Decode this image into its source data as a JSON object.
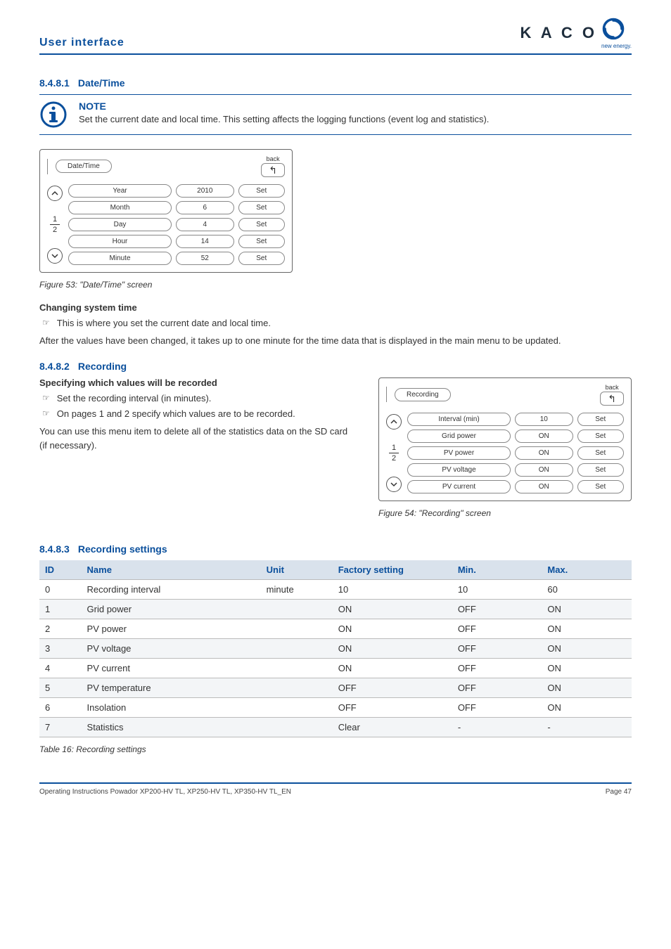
{
  "header": {
    "section": "User interface",
    "logo_text": "K A C O",
    "logo_sub": "new energy."
  },
  "sec1": {
    "num": "8.4.8.1",
    "title": "Date/Time",
    "note_title": "NOTE",
    "note_text": "Set the current date and local time. This setting affects the logging functions (event log and statistics).",
    "screen": {
      "title": "Date/Time",
      "back_label": "back",
      "back_glyph": "↰",
      "page_top": "1",
      "page_bot": "2",
      "rows": [
        {
          "label": "Year",
          "val": "2010",
          "set": "Set"
        },
        {
          "label": "Month",
          "val": "6",
          "set": "Set"
        },
        {
          "label": "Day",
          "val": "4",
          "set": "Set"
        },
        {
          "label": "Hour",
          "val": "14",
          "set": "Set"
        },
        {
          "label": "Minute",
          "val": "52",
          "set": "Set"
        }
      ]
    },
    "caption": "Figure 53:  \"Date/Time\" screen",
    "change_head": "Changing system time",
    "bullet1": "This is where you set the current date and local time.",
    "after_text": "After the values have been changed, it takes up to one minute for the time data that is displayed in the main menu to be updated."
  },
  "sec2": {
    "num": "8.4.8.2",
    "title": "Recording",
    "spec_head": "Specifying which values will be recorded",
    "b1": "Set the recording interval (in minutes).",
    "b2": "On pages 1 and 2 specify which values are to be recorded.",
    "para": "You can use this menu item to delete all of the statistics data on the SD card (if necessary).",
    "screen": {
      "title": "Recording",
      "back_label": "back",
      "back_glyph": "↰",
      "page_top": "1",
      "page_bot": "2",
      "rows": [
        {
          "label": "Interval (min)",
          "val": "10",
          "set": "Set"
        },
        {
          "label": "Grid power",
          "val": "ON",
          "set": "Set"
        },
        {
          "label": "PV power",
          "val": "ON",
          "set": "Set"
        },
        {
          "label": "PV voltage",
          "val": "ON",
          "set": "Set"
        },
        {
          "label": "PV current",
          "val": "ON",
          "set": "Set"
        }
      ]
    },
    "caption": "Figure 54: \"Recording\" screen"
  },
  "sec3": {
    "num": "8.4.8.3",
    "title": "Recording settings",
    "cols": {
      "c1": "ID",
      "c2": "Name",
      "c3": "Unit",
      "c4": "Factory setting",
      "c5": "Min.",
      "c6": "Max."
    },
    "rows": [
      {
        "id": "0",
        "name": "Recording interval",
        "unit": "minute",
        "fs": "10",
        "min": "10",
        "max": "60"
      },
      {
        "id": "1",
        "name": "Grid power",
        "unit": "",
        "fs": "ON",
        "min": "OFF",
        "max": "ON"
      },
      {
        "id": "2",
        "name": "PV power",
        "unit": "",
        "fs": "ON",
        "min": "OFF",
        "max": "ON"
      },
      {
        "id": "3",
        "name": "PV voltage",
        "unit": "",
        "fs": "ON",
        "min": "OFF",
        "max": "ON"
      },
      {
        "id": "4",
        "name": "PV current",
        "unit": "",
        "fs": "ON",
        "min": "OFF",
        "max": "ON"
      },
      {
        "id": "5",
        "name": "PV temperature",
        "unit": "",
        "fs": "OFF",
        "min": "OFF",
        "max": "ON"
      },
      {
        "id": "6",
        "name": "Insolation",
        "unit": "",
        "fs": "OFF",
        "min": "OFF",
        "max": "ON"
      },
      {
        "id": "7",
        "name": "Statistics",
        "unit": "",
        "fs": "Clear",
        "min": "-",
        "max": "-"
      }
    ],
    "caption": "Table 16:    Recording settings"
  },
  "footer": {
    "left": "Operating Instructions Powador XP200-HV TL, XP250-HV TL, XP350-HV TL_EN",
    "right": "Page 47"
  }
}
